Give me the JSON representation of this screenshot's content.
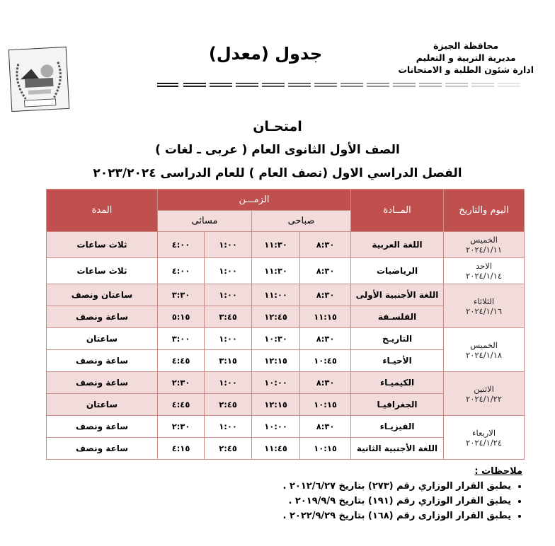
{
  "header": {
    "title": "جدول (معدل)",
    "org_lines": [
      "محافظة الجيزة",
      "مديرية التربية و التعليم",
      "ادارة شئون الطلبة و الامتحانات"
    ],
    "logo_text": [
      "محافظة الجيزة",
      "مديرية التربية و التعليم",
      "شئون الطلبة"
    ]
  },
  "titles": {
    "exam": "امتحـان",
    "grade": "الصف الأول الثانوى العام ( عربى ـ لغات )",
    "term": "الفصل الدراسي الاول (نصف العام ) للعام الدراسى ٢٠٢٣/٢٠٢٤"
  },
  "table": {
    "headers": {
      "day": "اليوم والتاريخ",
      "subject": "المــادة",
      "time": "الزمـــن",
      "morning": "صباحى",
      "evening": "مسائى",
      "duration": "المدة"
    },
    "days": [
      {
        "day": "الخميس",
        "date": "٢٠٢٤/١/١١",
        "shade": "pink",
        "exams": [
          {
            "subject": "اللغة العربية",
            "m_start": "٨:٣٠",
            "m_end": "١١:٣٠",
            "e_start": "١:٠٠",
            "e_end": "٤:٠٠",
            "duration": "ثلاث ساعات"
          }
        ]
      },
      {
        "day": "الاحد",
        "date": "٢٠٢٤/١/١٤",
        "shade": "white",
        "exams": [
          {
            "subject": "الرياضيات",
            "m_start": "٨:٣٠",
            "m_end": "١١:٣٠",
            "e_start": "١:٠٠",
            "e_end": "٤:٠٠",
            "duration": "ثلاث ساعات"
          }
        ]
      },
      {
        "day": "الثلاثاء",
        "date": "٢٠٢٤/١/١٦",
        "shade": "pink",
        "exams": [
          {
            "subject": "اللغة الأجنبية الأولى",
            "m_start": "٨:٣٠",
            "m_end": "١١:٠٠",
            "e_start": "١:٠٠",
            "e_end": "٣:٣٠",
            "duration": "ساعتان ونصف"
          },
          {
            "subject": "الفلسـفة",
            "m_start": "١١:١٥",
            "m_end": "١٢:٤٥",
            "e_start": "٣:٤٥",
            "e_end": "٥:١٥",
            "duration": "ساعة ونصف"
          }
        ]
      },
      {
        "day": "الخميس",
        "date": "٢٠٢٤/١/١٨",
        "shade": "white",
        "exams": [
          {
            "subject": "التاريـخ",
            "m_start": "٨:٣٠",
            "m_end": "١٠:٣٠",
            "e_start": "١:٠٠",
            "e_end": "٣:٠٠",
            "duration": "ساعتان"
          },
          {
            "subject": "الأحيـاء",
            "m_start": "١٠:٤٥",
            "m_end": "١٢:١٥",
            "e_start": "٣:١٥",
            "e_end": "٤:٤٥",
            "duration": "ساعة ونصف"
          }
        ]
      },
      {
        "day": "الاثنين",
        "date": "٢٠٢٤/١/٢٢",
        "shade": "pink",
        "exams": [
          {
            "subject": "الكيميـاء",
            "m_start": "٨:٣٠",
            "m_end": "١٠:٠٠",
            "e_start": "١:٠٠",
            "e_end": "٢:٣٠",
            "duration": "ساعة ونصف"
          },
          {
            "subject": "الجغرافيـا",
            "m_start": "١٠:١٥",
            "m_end": "١٢:١٥",
            "e_start": "٢:٤٥",
            "e_end": "٤:٤٥",
            "duration": "ساعتان"
          }
        ]
      },
      {
        "day": "الاربعاء",
        "date": "٢٠٢٤/١/٢٤",
        "shade": "white",
        "exams": [
          {
            "subject": "الفيزيـاء",
            "m_start": "٨:٣٠",
            "m_end": "١٠:٠٠",
            "e_start": "١:٠٠",
            "e_end": "٢:٣٠",
            "duration": "ساعة ونصف"
          },
          {
            "subject": "اللغة الأجنبية الثانية",
            "m_start": "١٠:١٥",
            "m_end": "١١:٤٥",
            "e_start": "٢:٤٥",
            "e_end": "٤:١٥",
            "duration": "ساعة ونصف"
          }
        ]
      }
    ]
  },
  "notes": {
    "title": "ملاحظات :",
    "items": [
      "يطبق القرار الوزاري رقم (٢٧٣) بتاريخ ٢٠١٢/٦/٢٧ .",
      "يطبق القرار الوزاري رقم (١٩١) بتاريخ ٢٠١٩/٩/٩ .",
      "يطبق القرار الوزارى رقم (١٦٨) بتاريخ ٢٠٢٢/٩/٢٩ ."
    ]
  },
  "colors": {
    "header_red": "#c0504d",
    "row_pink": "#f2dcdb",
    "border": "#c98a88"
  }
}
